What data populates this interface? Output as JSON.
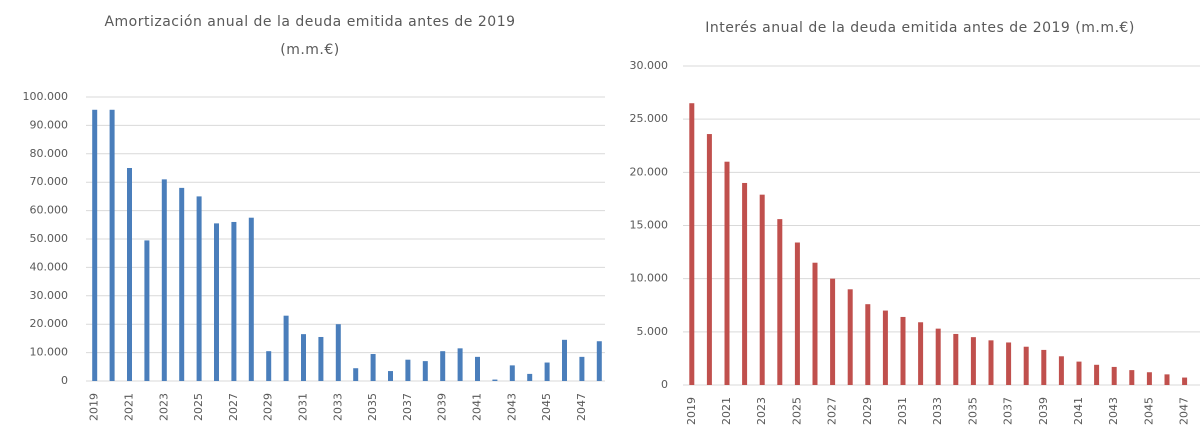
{
  "chart_data": [
    {
      "type": "bar",
      "title": "Amortización anual de la deuda emitida antes de 2019 (m.m.€)",
      "categories": [
        "2019",
        null,
        "2021",
        null,
        "2023",
        null,
        "2025",
        null,
        "2027",
        null,
        "2029",
        null,
        "2031",
        null,
        "2033",
        null,
        "2035",
        null,
        "2037",
        null,
        "2039",
        null,
        "2041",
        null,
        "2043",
        null,
        "2045",
        null,
        "2047",
        null
      ],
      "values": [
        95500,
        95500,
        75000,
        49500,
        71000,
        68000,
        65000,
        55500,
        56000,
        57500,
        10500,
        23000,
        16500,
        15500,
        20000,
        4500,
        9500,
        3500,
        7500,
        7000,
        10500,
        11500,
        8500,
        500,
        5500,
        2500,
        6500,
        14500,
        8500,
        14000
      ],
      "color": "#4a7ebb",
      "ylim": [
        0,
        100000
      ],
      "yticks": [
        0,
        {
          "value": 10000,
          "label": "10.000"
        },
        {
          "value": 20000,
          "label": "20.000"
        },
        {
          "value": 30000,
          "label": "30.000"
        },
        {
          "value": 40000,
          "label": "40.000"
        },
        {
          "value": 50000,
          "label": "50.000"
        },
        {
          "value": 60000,
          "label": "60.000"
        },
        {
          "value": 70000,
          "label": "70.000"
        },
        {
          "value": 80000,
          "label": "80.000"
        },
        {
          "value": 90000,
          "label": "90.000"
        },
        {
          "value": 100000,
          "label": "100.000"
        }
      ],
      "grid": true
    },
    {
      "type": "bar",
      "title": "Interés anual de la deuda emitida antes de 2019 (m.m.€)",
      "categories": [
        "2019",
        null,
        "2021",
        null,
        "2023",
        null,
        "2025",
        null,
        "2027",
        null,
        "2029",
        null,
        "2031",
        null,
        "2033",
        null,
        "2035",
        null,
        "2037",
        null,
        "2039",
        null,
        "2041",
        null,
        "2043",
        null,
        "2045",
        null,
        "2047"
      ],
      "values": [
        26500,
        23600,
        21000,
        19000,
        17900,
        15600,
        13400,
        11500,
        10000,
        9000,
        7600,
        7000,
        6400,
        5900,
        5300,
        4800,
        4500,
        4200,
        4000,
        3600,
        3300,
        2700,
        2200,
        1900,
        1700,
        1400,
        1200,
        1000,
        700
      ],
      "color": "#c0504d",
      "ylim": [
        0,
        30000
      ],
      "yticks": [
        0,
        {
          "value": 5000,
          "label": "5.000"
        },
        {
          "value": 10000,
          "label": "10.000"
        },
        {
          "value": 15000,
          "label": "15.000"
        },
        {
          "value": 20000,
          "label": "20.000"
        },
        {
          "value": 25000,
          "label": "25.000"
        },
        {
          "value": 30000,
          "label": "30.000"
        }
      ],
      "grid": true
    }
  ]
}
